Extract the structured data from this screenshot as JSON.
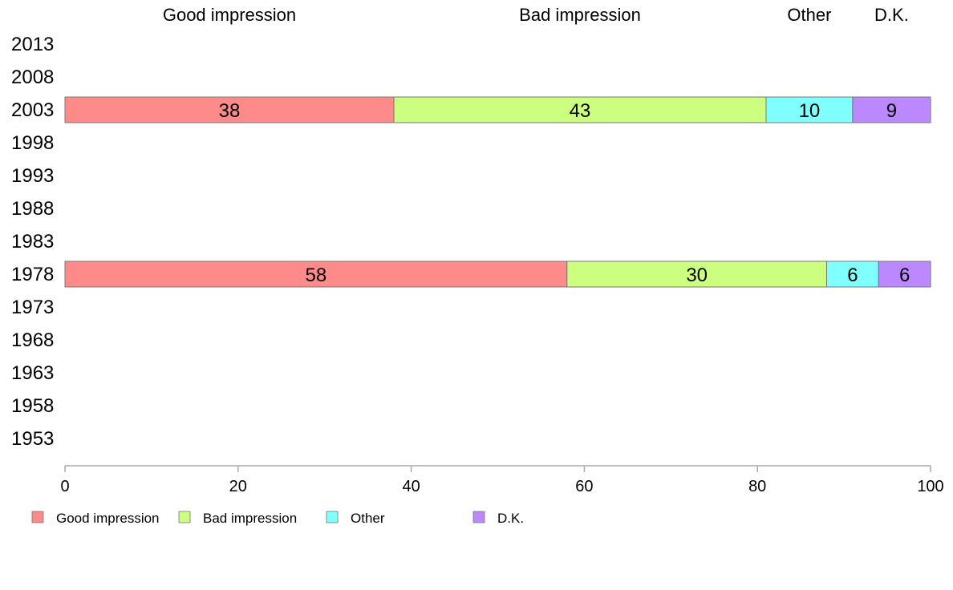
{
  "chart_data": {
    "type": "bar",
    "orientation": "horizontal",
    "stacked": true,
    "categories": [
      "2013",
      "2008",
      "2003",
      "1998",
      "1993",
      "1988",
      "1983",
      "1978",
      "1973",
      "1968",
      "1963",
      "1958",
      "1953"
    ],
    "series": [
      {
        "name": "Good impression",
        "color": "#ff8a8a",
        "values": [
          null,
          null,
          38,
          null,
          null,
          null,
          null,
          58,
          null,
          null,
          null,
          null,
          null
        ]
      },
      {
        "name": "Bad impression",
        "color": "#ccff80",
        "values": [
          null,
          null,
          43,
          null,
          null,
          null,
          null,
          30,
          null,
          null,
          null,
          null,
          null
        ]
      },
      {
        "name": "Other",
        "color": "#80ffff",
        "values": [
          null,
          null,
          10,
          null,
          null,
          null,
          null,
          6,
          null,
          null,
          null,
          null,
          null
        ]
      },
      {
        "name": "D.K.",
        "color": "#bb88ff",
        "values": [
          null,
          null,
          9,
          null,
          null,
          null,
          null,
          6,
          null,
          null,
          null,
          null,
          null
        ]
      }
    ],
    "column_headers": [
      "Good impression",
      "Bad impression",
      "Other",
      "D.K."
    ],
    "xlim": [
      0,
      100
    ],
    "xticks": [
      0,
      20,
      40,
      60,
      80,
      100
    ],
    "grid": false,
    "legend_position": "bottom-left"
  }
}
